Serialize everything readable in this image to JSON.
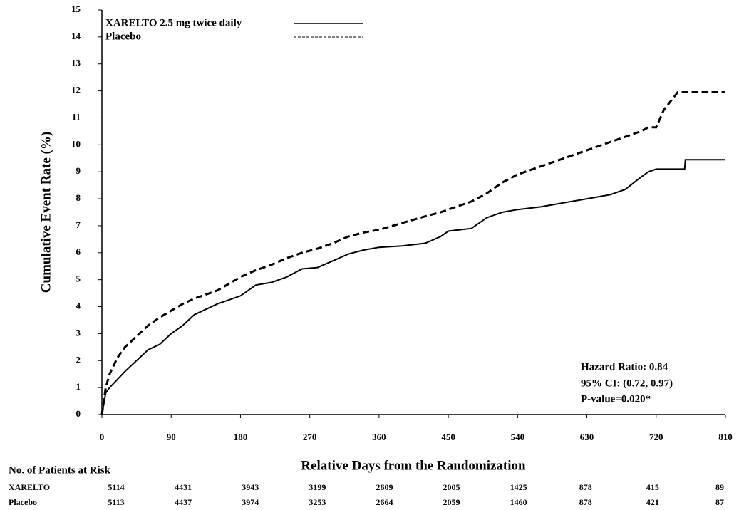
{
  "chart_data": {
    "type": "line",
    "y_label": "Cumulative Event Rate (%)",
    "x_label": "Relative Days from the Randomization",
    "xlim": [
      0,
      810
    ],
    "xticks": [
      0,
      90,
      180,
      270,
      360,
      450,
      540,
      630,
      720,
      810
    ],
    "ylim": [
      0,
      15
    ],
    "yticks": [
      0,
      1,
      2,
      3,
      4,
      5,
      6,
      7,
      8,
      9,
      10,
      11,
      12,
      13,
      14,
      15
    ],
    "x": [
      0,
      5,
      10,
      20,
      30,
      45,
      60,
      75,
      90,
      105,
      120,
      135,
      150,
      180,
      200,
      220,
      240,
      260,
      280,
      300,
      320,
      340,
      360,
      390,
      420,
      440,
      450,
      480,
      500,
      520,
      540,
      570,
      600,
      630,
      660,
      680,
      700,
      710,
      720,
      730,
      748,
      757,
      758,
      810
    ],
    "series": [
      {
        "name": "XARELTO 2.5 mg twice daily",
        "color": "#000000",
        "style": "solid",
        "values": [
          0,
          0.8,
          1.0,
          1.3,
          1.6,
          2.0,
          2.4,
          2.6,
          3.0,
          3.3,
          3.7,
          3.9,
          4.1,
          4.4,
          4.8,
          4.9,
          5.1,
          5.4,
          5.45,
          5.7,
          5.95,
          6.1,
          6.2,
          6.25,
          6.35,
          6.6,
          6.8,
          6.9,
          7.3,
          7.5,
          7.6,
          7.7,
          7.85,
          8.0,
          8.15,
          8.35,
          8.8,
          9.0,
          9.1,
          9.1,
          9.1,
          9.1,
          9.45,
          9.45
        ]
      },
      {
        "name": "Placebo",
        "color": "#000000",
        "style": "dashed",
        "values": [
          0,
          1.0,
          1.5,
          2.1,
          2.5,
          2.9,
          3.3,
          3.6,
          3.85,
          4.1,
          4.3,
          4.45,
          4.6,
          5.1,
          5.35,
          5.55,
          5.8,
          6.0,
          6.15,
          6.35,
          6.6,
          6.75,
          6.85,
          7.1,
          7.35,
          7.5,
          7.6,
          7.9,
          8.2,
          8.6,
          8.9,
          9.2,
          9.5,
          9.8,
          10.1,
          10.3,
          10.5,
          10.65,
          10.65,
          11.3,
          11.95,
          11.95,
          11.95,
          11.95
        ]
      }
    ],
    "annotations": [
      "Hazard Ratio: 0.84",
      "95% CI:  (0.72, 0.97)",
      "P-value=0.020*"
    ],
    "risk_table": {
      "title": "No. of Patients at Risk",
      "rows": [
        {
          "label": "XARELTO",
          "values": [
            5114,
            4431,
            3943,
            3199,
            2609,
            2005,
            1425,
            878,
            415,
            89
          ]
        },
        {
          "label": "Placebo",
          "values": [
            5113,
            4437,
            3974,
            3253,
            2664,
            2059,
            1460,
            878,
            421,
            87
          ]
        }
      ]
    }
  }
}
